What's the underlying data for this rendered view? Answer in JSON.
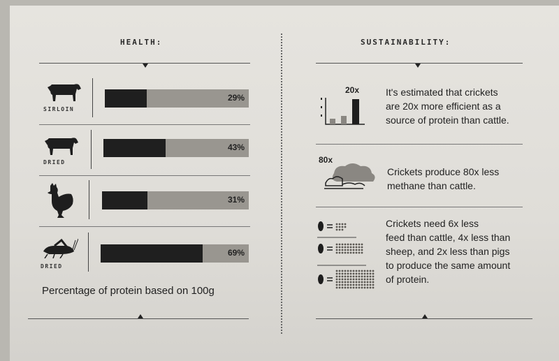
{
  "health": {
    "heading": "HEALTH:",
    "rows": [
      {
        "label": "SIRLOIN",
        "icon": "cow-icon",
        "percent": "29%",
        "fraction": 0.29
      },
      {
        "label": "DRIED",
        "icon": "cow-icon",
        "percent": "43%",
        "fraction": 0.43
      },
      {
        "label": "",
        "icon": "rooster-icon",
        "percent": "31%",
        "fraction": 0.31
      },
      {
        "label": "DRIED",
        "icon": "cricket-icon",
        "percent": "69%",
        "fraction": 0.69
      }
    ],
    "caption": "Percentage of protein based on 100g"
  },
  "sustainability": {
    "heading": "SUSTAINABILITY:",
    "items": [
      {
        "multiplier": "20x",
        "icon": "bar-chart-icon",
        "lines": [
          "It's estimated that crickets",
          "are 20x more efficient as a",
          "source of protein than cattle."
        ]
      },
      {
        "multiplier": "80x",
        "icon": "cloud-icon",
        "lines": [
          "Crickets produce 80x less",
          "methane than cattle."
        ]
      },
      {
        "multiplier": "",
        "icon": "feed-comparison-icon",
        "lines": [
          "Crickets need 6x less",
          "feed than cattle, 4x less than",
          "sheep, and 2x less than pigs",
          "to produce the same amount",
          "of protein."
        ]
      }
    ]
  },
  "colors": {
    "bar_fill": "#1f1f1f",
    "bar_track": "#999690",
    "paper": "#e4e2dd"
  }
}
